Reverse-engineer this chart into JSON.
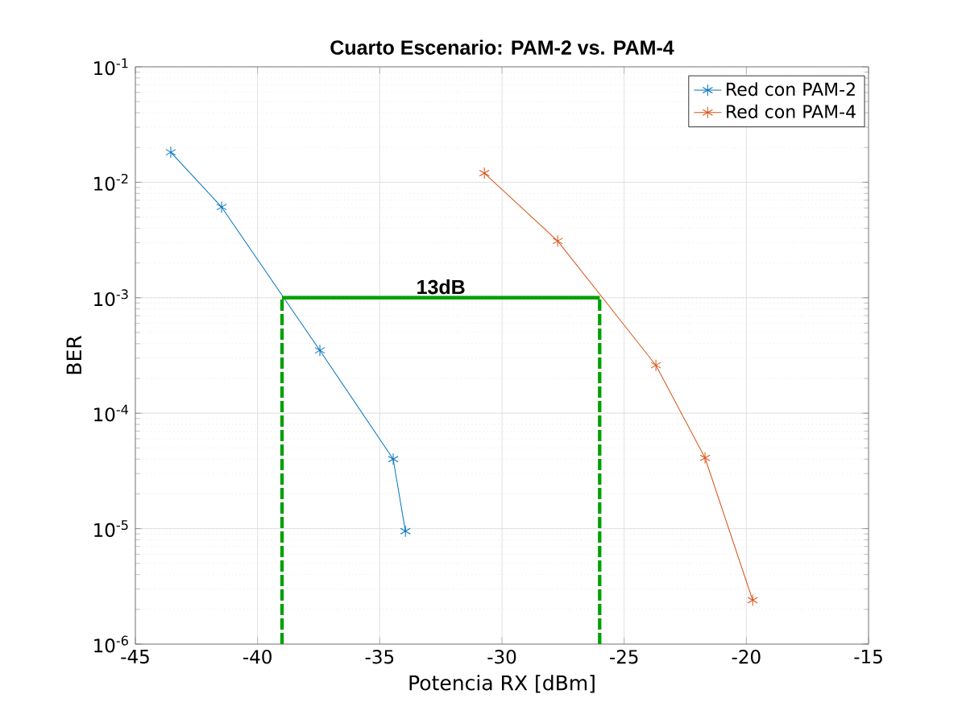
{
  "chart_data": {
    "type": "line",
    "title": "Cuarto Escenario: PAM-2 vs. PAM-4",
    "xlabel": "Potencia RX [dBm]",
    "ylabel": "BER",
    "log": "y",
    "grid": true,
    "legend": "top right",
    "marker": "cross",
    "xlim": [
      -45,
      -15
    ],
    "xticks": [
      -45,
      -40,
      -35,
      -30,
      -25,
      -20,
      -15
    ],
    "ylim": [
      1e-06,
      0.1
    ],
    "yticks": [
      {
        "value": 1e-06,
        "label": "10$^{-6}$"
      },
      {
        "value": 1e-05,
        "label": "10$^{-5}$"
      },
      {
        "value": 0.0001,
        "label": "10$^{-4}$"
      },
      {
        "value": 0.001,
        "label": "10$^{-3}$"
      },
      {
        "value": 0.01,
        "label": "10$^{-2}$"
      },
      {
        "value": 0.1,
        "label": "10$^{-1}$"
      }
    ],
    "series": [
      {
        "name": "Red con PAM-2",
        "color": "#0072bd",
        "x": [
          -43.55,
          -41.47,
          -37.45,
          -34.45,
          -33.95
        ],
        "values": [
          0.0182,
          0.0061,
          0.00035,
          4e-05,
          9.5e-06
        ]
      },
      {
        "name": "Red con PAM-4",
        "color": "#d95319",
        "x": [
          -30.72,
          -27.72,
          -23.7,
          -21.69,
          -19.74
        ],
        "values": [
          0.012,
          0.0031,
          0.00026,
          4.1e-05,
          2.4e-06
        ]
      },
      {
        "color": "#00a000",
        "marker": "none",
        "line_style": "solid",
        "x": [
          -39,
          -26
        ],
        "values": [
          0.001,
          0.001
        ]
      },
      {
        "color": "#00a000",
        "marker": "none",
        "line_style": "dashed",
        "x": [
          -39,
          -39
        ],
        "values": [
          1e-06,
          0.001
        ]
      },
      {
        "color": "#00a000",
        "marker": "none",
        "line_style": "dashed",
        "x": [
          -26,
          -26
        ],
        "values": [
          1e-06,
          0.001
        ]
      }
    ],
    "annotations": [
      {
        "text": "13dB",
        "x": -32.5,
        "y": 0.001
      }
    ]
  }
}
